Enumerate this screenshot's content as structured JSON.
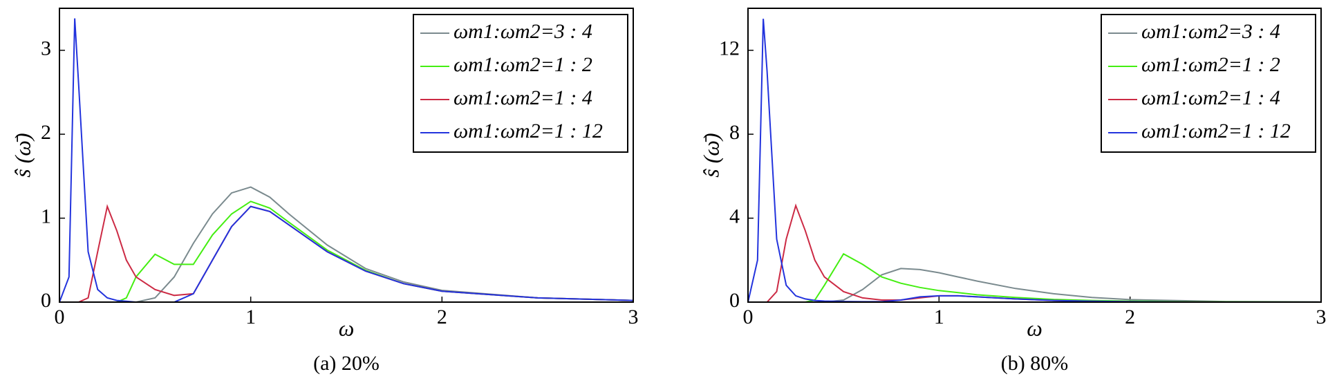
{
  "chart_data": [
    {
      "type": "line",
      "caption": "(a) 20%",
      "xlabel": "ω",
      "ylabel": "ŝ (ω̄)",
      "xlim": [
        0,
        3
      ],
      "xticks": [
        0,
        1,
        2,
        3
      ],
      "ylim": [
        0,
        3.5
      ],
      "yticks": [
        0,
        1,
        2,
        3
      ],
      "x": [
        0,
        0.05,
        0.08,
        0.1,
        0.15,
        0.2,
        0.25,
        0.3,
        0.35,
        0.4,
        0.5,
        0.6,
        0.7,
        0.8,
        0.9,
        1.0,
        1.1,
        1.2,
        1.4,
        1.6,
        1.8,
        2.0,
        2.5,
        3.0
      ],
      "legend": "upper right",
      "series": [
        {
          "name": "ωm1:ωm2=3 : 4",
          "color": "#7a8a8e",
          "values": [
            0,
            0,
            0,
            0,
            0,
            0,
            0,
            0,
            0,
            0,
            0.05,
            0.3,
            0.7,
            1.05,
            1.3,
            1.37,
            1.25,
            1.05,
            0.68,
            0.4,
            0.24,
            0.14,
            0.05,
            0.02
          ]
        },
        {
          "name": "ωm1:ωm2=1 : 2",
          "color": "#44ee11",
          "values": [
            0,
            0,
            0,
            0,
            0,
            0,
            0,
            0,
            0.05,
            0.3,
            0.57,
            0.45,
            0.45,
            0.8,
            1.05,
            1.2,
            1.12,
            0.95,
            0.62,
            0.38,
            0.22,
            0.13,
            0.05,
            0.02
          ]
        },
        {
          "name": "ωm1:ωm2=1 : 4",
          "color": "#cc2a44",
          "values": [
            0,
            0,
            0,
            0,
            0.05,
            0.6,
            1.14,
            0.85,
            0.5,
            0.3,
            0.15,
            0.08,
            0.1,
            0.5,
            0.9,
            1.14,
            1.08,
            0.92,
            0.6,
            0.37,
            0.22,
            0.13,
            0.05,
            0.02
          ]
        },
        {
          "name": "ωm1:ωm2=1 : 12",
          "color": "#2233dd",
          "values": [
            0,
            0.3,
            3.38,
            2.6,
            0.6,
            0.15,
            0.05,
            0.02,
            0.01,
            0,
            0,
            0,
            0.1,
            0.5,
            0.9,
            1.14,
            1.08,
            0.92,
            0.6,
            0.37,
            0.22,
            0.13,
            0.05,
            0.02
          ]
        }
      ]
    },
    {
      "type": "line",
      "caption": "(b) 80%",
      "xlabel": "ω",
      "ylabel": "ŝ (ω̄)",
      "xlim": [
        0,
        3
      ],
      "xticks": [
        0,
        1,
        2,
        3
      ],
      "ylim": [
        0,
        14
      ],
      "yticks": [
        0,
        4,
        8,
        12
      ],
      "x": [
        0,
        0.05,
        0.08,
        0.1,
        0.15,
        0.2,
        0.25,
        0.3,
        0.35,
        0.4,
        0.5,
        0.6,
        0.7,
        0.8,
        0.9,
        1.0,
        1.1,
        1.2,
        1.4,
        1.6,
        1.8,
        2.0,
        2.5,
        3.0
      ],
      "legend": "upper right",
      "series": [
        {
          "name": "ωm1:ωm2=3 : 4",
          "color": "#7a8a8e",
          "values": [
            0,
            0,
            0,
            0,
            0,
            0,
            0,
            0,
            0,
            0,
            0.1,
            0.6,
            1.3,
            1.6,
            1.55,
            1.4,
            1.2,
            1.0,
            0.65,
            0.4,
            0.22,
            0.12,
            0.03,
            0.01
          ]
        },
        {
          "name": "ωm1:ωm2=1 : 2",
          "color": "#44ee11",
          "values": [
            0,
            0,
            0,
            0,
            0,
            0,
            0,
            0,
            0.1,
            0.8,
            2.3,
            1.8,
            1.2,
            0.9,
            0.7,
            0.55,
            0.45,
            0.35,
            0.22,
            0.13,
            0.08,
            0.05,
            0.01,
            0
          ]
        },
        {
          "name": "ωm1:ωm2=1 : 4",
          "color": "#cc2a44",
          "values": [
            0,
            0,
            0,
            0,
            0.5,
            3,
            4.6,
            3.4,
            2.0,
            1.2,
            0.5,
            0.2,
            0.1,
            0.1,
            0.2,
            0.3,
            0.3,
            0.25,
            0.15,
            0.08,
            0.04,
            0.02,
            0,
            0
          ]
        },
        {
          "name": "ωm1:ωm2=1 : 12",
          "color": "#2233dd",
          "values": [
            0,
            2,
            13.5,
            11,
            3,
            0.8,
            0.3,
            0.15,
            0.08,
            0.05,
            0.03,
            0.02,
            0.02,
            0.1,
            0.25,
            0.3,
            0.3,
            0.25,
            0.15,
            0.08,
            0.04,
            0.02,
            0,
            0
          ]
        }
      ]
    }
  ]
}
